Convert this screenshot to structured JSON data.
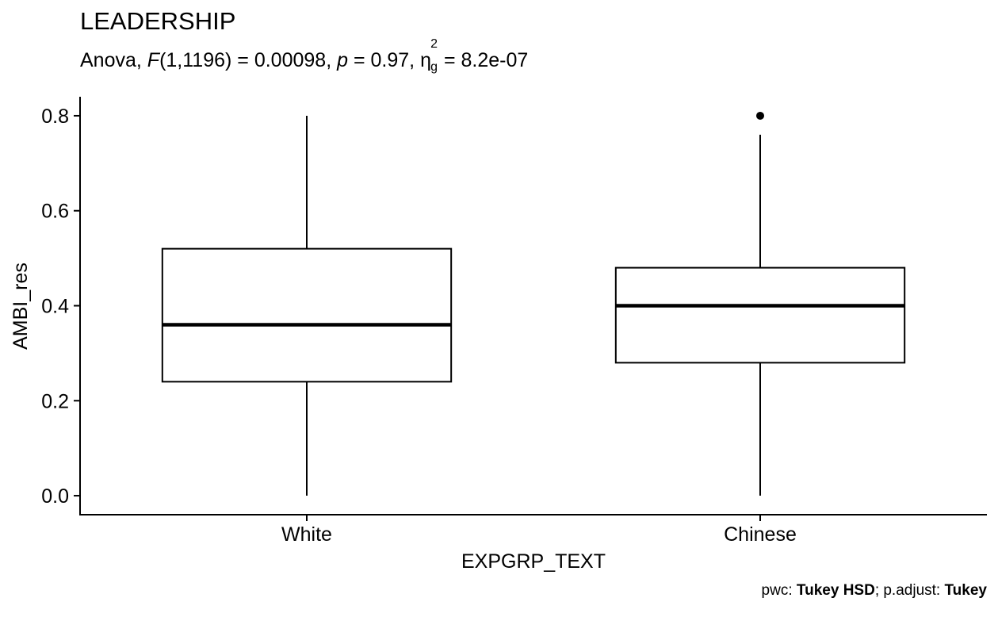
{
  "chart_data": {
    "type": "boxplot",
    "title": "LEADERSHIP",
    "subtitle": {
      "test": "Anova,",
      "f_label": "F",
      "f_df": "(1,1196) = 0.00098,",
      "p_label": "p",
      "p_value": "= 0.97,",
      "eta_symbol": "η",
      "eta_sup": "2",
      "eta_sub": "g",
      "eta_value": "= 8.2e-07"
    },
    "xlabel": "EXPGRP_TEXT",
    "ylabel": "AMBI_res",
    "ylim": [
      -0.04,
      0.84
    ],
    "yticks": [
      0.0,
      0.2,
      0.4,
      0.6,
      0.8
    ],
    "ytick_labels": [
      "0.0",
      "0.2",
      "0.4",
      "0.6",
      "0.8"
    ],
    "categories": [
      "White",
      "Chinese"
    ],
    "boxes": [
      {
        "name": "White",
        "whisker_low": 0.0,
        "q1": 0.24,
        "median": 0.36,
        "q3": 0.52,
        "whisker_high": 0.8,
        "outliers": []
      },
      {
        "name": "Chinese",
        "whisker_low": 0.0,
        "q1": 0.28,
        "median": 0.4,
        "q3": 0.48,
        "whisker_high": 0.76,
        "outliers": [
          0.8
        ]
      }
    ],
    "caption": {
      "pwc_label": "pwc:",
      "pwc_value": "Tukey HSD",
      "adjust_label": "; p.adjust:",
      "adjust_value": "Tukey"
    }
  }
}
